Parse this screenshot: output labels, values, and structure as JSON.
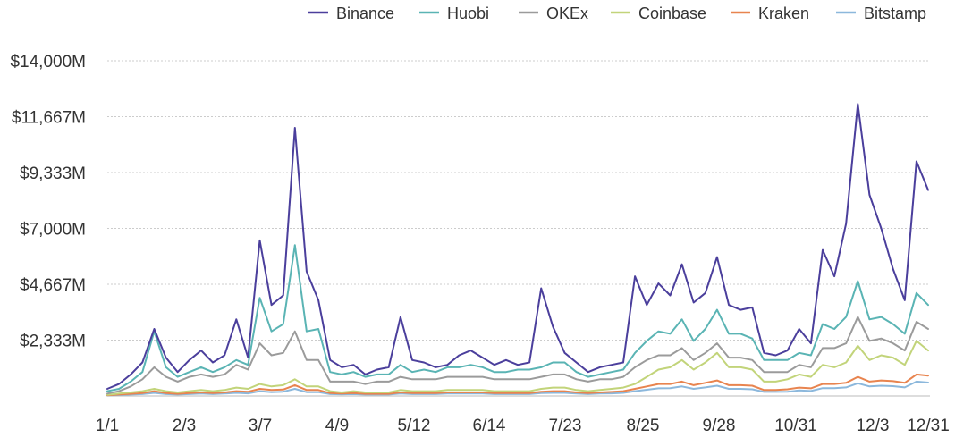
{
  "chart_data": {
    "type": "line",
    "title": "",
    "xlabel": "",
    "ylabel": "",
    "x_tick_labels": [
      "1/1",
      "2/3",
      "3/7",
      "4/9",
      "5/12",
      "6/14",
      "7/23",
      "8/25",
      "9/28",
      "10/31",
      "12/3",
      "12/31"
    ],
    "y_tick_labels": [
      "$2,333M",
      "$4,667M",
      "$7,000M",
      "$9,333M",
      "$11,667M",
      "$14,000M"
    ],
    "y_tick_values": [
      2333,
      4667,
      7000,
      9333,
      11667,
      14000
    ],
    "ylim": [
      0,
      14000
    ],
    "grid": true,
    "legend_position": "top",
    "series": [
      {
        "name": "Binance",
        "color": "#4b3f9c",
        "values": [
          300,
          500,
          900,
          1400,
          2800,
          1600,
          1000,
          1500,
          1900,
          1400,
          1700,
          3200,
          1600,
          6500,
          3800,
          4200,
          11200,
          5200,
          4000,
          1500,
          1200,
          1300,
          900,
          1100,
          1200,
          3300,
          1500,
          1400,
          1200,
          1300,
          1700,
          1900,
          1600,
          1300,
          1500,
          1300,
          1400,
          4500,
          2900,
          1800,
          1400,
          1000,
          1200,
          1300,
          1400,
          5000,
          3800,
          4700,
          4200,
          5500,
          3900,
          4300,
          5800,
          3800,
          3600,
          3700,
          1800,
          1700,
          1900,
          2800,
          2200,
          6100,
          5000,
          7200,
          12200,
          8400,
          7000,
          5300,
          4000,
          9800,
          8600
        ]
      },
      {
        "name": "Huobi",
        "color": "#5ab4b4",
        "values": [
          200,
          300,
          600,
          1000,
          2700,
          1200,
          800,
          1000,
          1200,
          1000,
          1200,
          1500,
          1300,
          4100,
          2700,
          3000,
          6300,
          2700,
          2800,
          1000,
          900,
          1000,
          800,
          900,
          900,
          1300,
          1000,
          1100,
          1000,
          1200,
          1200,
          1300,
          1200,
          1000,
          1000,
          1100,
          1100,
          1200,
          1400,
          1400,
          1000,
          800,
          900,
          1000,
          1100,
          1800,
          2300,
          2700,
          2600,
          3200,
          2300,
          2800,
          3600,
          2600,
          2600,
          2400,
          1500,
          1500,
          1500,
          1800,
          1700,
          3000,
          2800,
          3300,
          4800,
          3200,
          3300,
          3000,
          2600,
          4300,
          3800
        ]
      },
      {
        "name": "OKEx",
        "color": "#9b9b9b",
        "values": [
          100,
          200,
          400,
          700,
          1200,
          800,
          600,
          800,
          900,
          800,
          900,
          1300,
          1100,
          2200,
          1700,
          1800,
          2700,
          1500,
          1500,
          600,
          600,
          600,
          500,
          600,
          600,
          800,
          700,
          700,
          700,
          800,
          800,
          800,
          800,
          700,
          700,
          700,
          700,
          800,
          900,
          900,
          700,
          600,
          700,
          700,
          800,
          1200,
          1500,
          1700,
          1700,
          2000,
          1500,
          1800,
          2200,
          1600,
          1600,
          1500,
          1000,
          1000,
          1000,
          1300,
          1200,
          2000,
          2000,
          2200,
          3300,
          2300,
          2400,
          2200,
          1900,
          3100,
          2800
        ]
      },
      {
        "name": "Coinbase",
        "color": "#c2d47a",
        "values": [
          50,
          100,
          150,
          200,
          300,
          200,
          150,
          200,
          250,
          200,
          250,
          350,
          300,
          500,
          400,
          450,
          700,
          400,
          400,
          200,
          150,
          200,
          150,
          150,
          150,
          250,
          200,
          200,
          200,
          250,
          250,
          250,
          250,
          200,
          200,
          200,
          200,
          300,
          350,
          350,
          250,
          200,
          250,
          300,
          350,
          500,
          800,
          1100,
          1200,
          1500,
          1100,
          1400,
          1800,
          1200,
          1200,
          1100,
          600,
          600,
          700,
          900,
          800,
          1300,
          1200,
          1400,
          2100,
          1500,
          1700,
          1600,
          1300,
          2300,
          1900
        ]
      },
      {
        "name": "Kraken",
        "color": "#e8844f",
        "values": [
          30,
          60,
          90,
          120,
          200,
          120,
          90,
          120,
          150,
          120,
          150,
          200,
          180,
          300,
          250,
          270,
          450,
          250,
          250,
          120,
          100,
          120,
          90,
          90,
          90,
          150,
          120,
          120,
          120,
          150,
          150,
          150,
          150,
          120,
          120,
          120,
          120,
          180,
          200,
          200,
          150,
          120,
          150,
          170,
          200,
          300,
          400,
          500,
          500,
          600,
          450,
          550,
          650,
          450,
          450,
          430,
          250,
          250,
          280,
          350,
          320,
          500,
          500,
          550,
          800,
          600,
          650,
          620,
          550,
          900,
          850
        ]
      },
      {
        "name": "Bitstamp",
        "color": "#8cb8dc",
        "values": [
          20,
          40,
          60,
          80,
          130,
          80,
          60,
          80,
          100,
          80,
          100,
          130,
          110,
          200,
          160,
          180,
          300,
          160,
          160,
          80,
          70,
          80,
          60,
          60,
          60,
          100,
          80,
          80,
          80,
          100,
          100,
          100,
          100,
          80,
          80,
          80,
          80,
          120,
          130,
          130,
          100,
          80,
          100,
          110,
          130,
          200,
          260,
          320,
          330,
          400,
          300,
          360,
          430,
          300,
          300,
          280,
          170,
          170,
          180,
          230,
          210,
          330,
          330,
          360,
          530,
          400,
          430,
          410,
          360,
          600,
          560
        ]
      }
    ]
  }
}
